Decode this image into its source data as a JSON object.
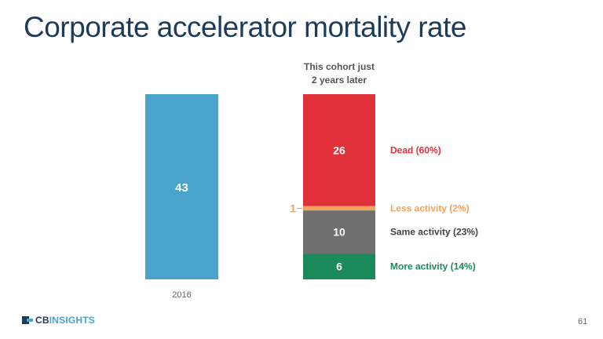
{
  "title": "Corporate accelerator mortality rate",
  "page_number": "61",
  "logo": {
    "bold": "CB",
    "light": "INSIGHTS"
  },
  "colors": {
    "total": "#4aa3cb",
    "dead": "#e0303a",
    "less": "#f4a25c",
    "same": "#707070",
    "more": "#1a8a5a",
    "title": "#1f3b5a"
  },
  "chart_data": {
    "type": "bar",
    "cohort_label": "This cohort just\n2 years later",
    "total": {
      "category": "2016",
      "value": 43
    },
    "stack": [
      {
        "key": "dead",
        "value": 26,
        "label": "Dead (60%)"
      },
      {
        "key": "less",
        "value": 1,
        "label": "Less activity (2%)"
      },
      {
        "key": "same",
        "value": 10,
        "label": "Same activity (23%)"
      },
      {
        "key": "more",
        "value": 6,
        "label": "More activity (14%)"
      }
    ]
  }
}
